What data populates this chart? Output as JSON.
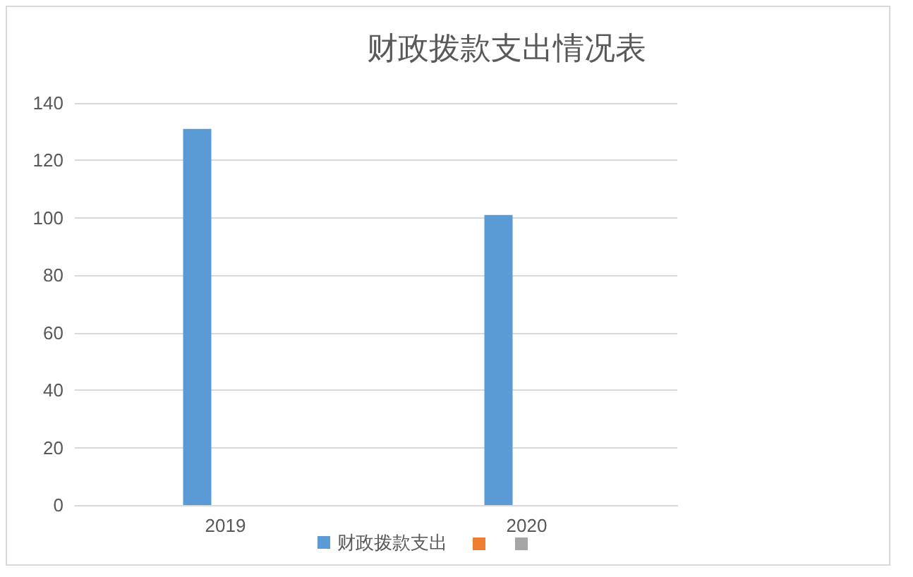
{
  "chart_data": {
    "type": "bar",
    "title": "财政拨款支出情况表",
    "categories": [
      "2019",
      "2020"
    ],
    "series": [
      {
        "name": "财政拨款支出",
        "color": "#5b9bd5",
        "values": [
          131,
          101
        ]
      },
      {
        "color": "#ed7d31",
        "values": [
          null,
          null
        ]
      },
      {
        "color": "#a5a5a5",
        "values": [
          null,
          null
        ]
      }
    ],
    "ylim": [
      0,
      140
    ],
    "yticks": [
      0,
      20,
      40,
      60,
      80,
      100,
      120,
      140
    ],
    "grid": "y",
    "legend": "bottom"
  }
}
